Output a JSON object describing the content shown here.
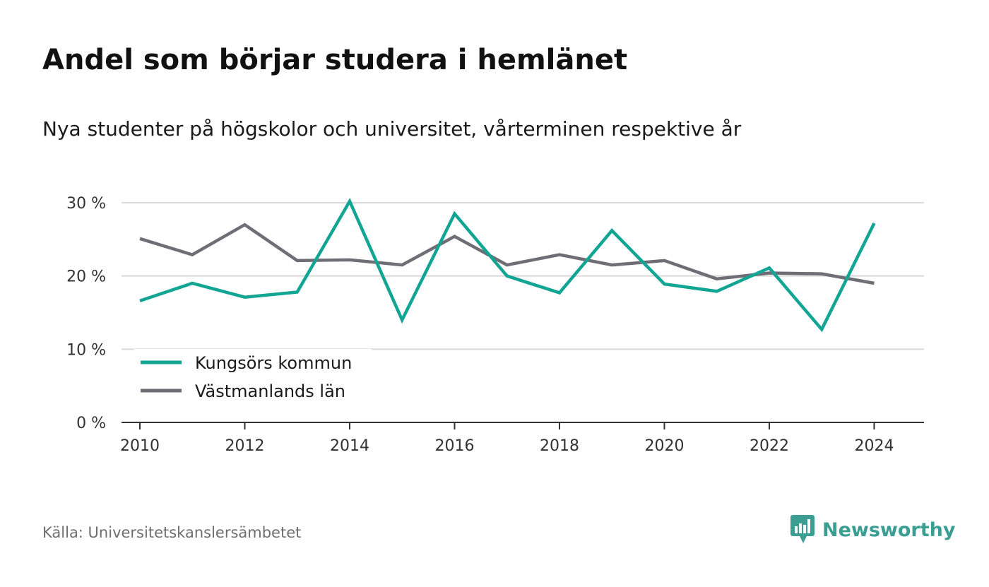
{
  "header": {
    "title": "Andel som börjar studera i hemlänet",
    "subtitle": "Nya studenter på högskolor och universitet, vårterminen respektive år"
  },
  "footer": {
    "source": "Källa: Universitetskanslersämbetet",
    "brand": "Newsworthy"
  },
  "colors": {
    "kungsor": "#12a594",
    "vastmanland": "#6f6e76",
    "grid": "#d9d9d9",
    "axis": "#333333",
    "brand": "#3a9e92"
  },
  "chart_data": {
    "type": "line",
    "title": "Andel som börjar studera i hemlänet",
    "subtitle": "Nya studenter på högskolor och universitet, vårterminen respektive år",
    "x": [
      2010,
      2011,
      2012,
      2013,
      2014,
      2015,
      2016,
      2017,
      2018,
      2019,
      2020,
      2021,
      2022,
      2023,
      2024
    ],
    "x_ticks": [
      2010,
      2012,
      2014,
      2016,
      2018,
      2020,
      2022,
      2024
    ],
    "x_tick_labels": [
      "2010",
      "2012",
      "2014",
      "2016",
      "2018",
      "2020",
      "2022",
      "2024"
    ],
    "y_ticks": [
      0,
      10,
      20,
      30
    ],
    "y_tick_labels": [
      "0 %",
      "10 %",
      "20 %",
      "30 %"
    ],
    "ylim": [
      0,
      30
    ],
    "grid": true,
    "legend_position": "bottom-left",
    "series": [
      {
        "name": "Kungsörs kommun",
        "color": "#12a594",
        "values": [
          16.6,
          19.0,
          17.1,
          17.8,
          30.2,
          14.0,
          28.5,
          20.0,
          17.7,
          26.2,
          18.9,
          17.9,
          21.1,
          12.7,
          27.2
        ]
      },
      {
        "name": "Västmanlands län",
        "color": "#6f6e76",
        "values": [
          25.1,
          22.9,
          27.0,
          22.1,
          22.2,
          21.5,
          25.4,
          21.5,
          22.9,
          21.5,
          22.1,
          19.6,
          20.4,
          20.3,
          19.0
        ]
      }
    ]
  }
}
